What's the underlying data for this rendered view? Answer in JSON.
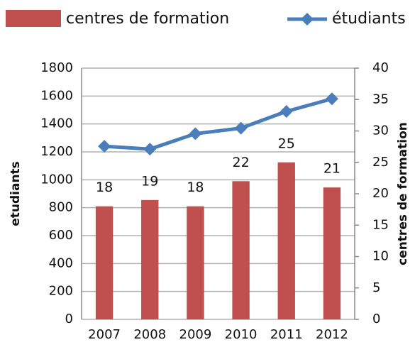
{
  "chart_data": {
    "type": "bar+line",
    "categories": [
      "2007",
      "2008",
      "2009",
      "2010",
      "2011",
      "2012"
    ],
    "series": [
      {
        "name": "centres de formation",
        "type": "bar",
        "axis": "y2",
        "color": "#c0504d",
        "values": [
          18,
          19,
          18,
          22,
          25,
          21
        ]
      },
      {
        "name": "étudiants",
        "type": "line",
        "axis": "y",
        "color": "#4a7ebb",
        "values": [
          1240,
          1220,
          1330,
          1370,
          1490,
          1580
        ]
      }
    ],
    "ylabel": "etudiants",
    "y2label": "centres de formation",
    "ylim": [
      0,
      1800
    ],
    "yticks": [
      0,
      200,
      400,
      600,
      800,
      1000,
      1200,
      1400,
      1600,
      1800
    ],
    "y2lim": [
      0,
      40
    ],
    "y2ticks": [
      0,
      5,
      10,
      15,
      20,
      25,
      30,
      35,
      40
    ],
    "grid": true,
    "legend": "top"
  }
}
